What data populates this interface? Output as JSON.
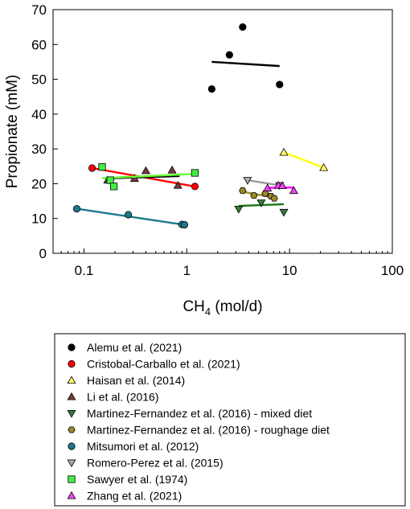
{
  "chart_data": {
    "type": "scatter",
    "title": "",
    "xlabel": {
      "base": "CH",
      "sub": "4",
      "rest": " (mol/d)"
    },
    "ylabel": "Propionate (mM)",
    "xscale": "log",
    "xlim": [
      0.05,
      100
    ],
    "ylim": [
      0,
      70
    ],
    "x_ticks": [
      {
        "value": 0.1,
        "label": "0.1"
      },
      {
        "value": 1,
        "label": "1"
      },
      {
        "value": 10,
        "label": "10"
      },
      {
        "value": 100,
        "label": "100"
      }
    ],
    "y_ticks": [
      {
        "value": 0,
        "label": "0"
      },
      {
        "value": 10,
        "label": "10"
      },
      {
        "value": 20,
        "label": "20"
      },
      {
        "value": 30,
        "label": "30"
      },
      {
        "value": 40,
        "label": "40"
      },
      {
        "value": 50,
        "label": "50"
      },
      {
        "value": 60,
        "label": "60"
      },
      {
        "value": 70,
        "label": "70"
      }
    ],
    "grid": false,
    "legend_position": "below",
    "series": [
      {
        "name": "Alemu et al. (2021)",
        "marker": "circle",
        "fill": "#000000",
        "line_color": "#000000",
        "points": [
          [
            1.75,
            47.2
          ],
          [
            2.6,
            57.0
          ],
          [
            3.5,
            65.0
          ],
          [
            8.0,
            48.5
          ]
        ],
        "fit": [
          [
            1.75,
            55.0
          ],
          [
            8.0,
            53.8
          ]
        ]
      },
      {
        "name": "Cristobal-Carballo et al. (2021)",
        "marker": "circle",
        "fill": "#ff0000",
        "line_color": "#ff0000",
        "points": [
          [
            0.12,
            24.5
          ],
          [
            1.2,
            19.2
          ]
        ],
        "fit": [
          [
            0.12,
            24.5
          ],
          [
            1.2,
            19.2
          ]
        ]
      },
      {
        "name": "Haisan et al. (2014)",
        "marker": "triangle-up",
        "fill": "#ffff66",
        "line_color": "#ffff00",
        "points": [
          [
            8.8,
            29.0
          ],
          [
            21.5,
            24.6
          ]
        ],
        "fit": [
          [
            8.8,
            29.0
          ],
          [
            21.5,
            24.6
          ]
        ]
      },
      {
        "name": "Li et al. (2016)",
        "marker": "triangle-up",
        "fill": "#7a3a3a",
        "line_color": "#000000",
        "points": [
          [
            0.17,
            21.0
          ],
          [
            0.31,
            21.5
          ],
          [
            0.4,
            23.7
          ],
          [
            0.72,
            23.9
          ],
          [
            0.82,
            19.5
          ]
        ],
        "fit": [
          [
            0.16,
            21.5
          ],
          [
            0.85,
            22.2
          ]
        ]
      },
      {
        "name": "Martinez-Fernandez et al. (2016) - mixed diet",
        "marker": "triangle-down",
        "fill": "#3a7a3a",
        "line_color": "#1a7a1a",
        "points": [
          [
            3.2,
            12.7
          ],
          [
            5.3,
            14.5
          ],
          [
            8.8,
            11.8
          ]
        ],
        "fit": [
          [
            3.2,
            13.6
          ],
          [
            8.8,
            14.1
          ]
        ]
      },
      {
        "name": "Martinez-Fernandez et al. (2016) - roughage diet",
        "marker": "hexagon",
        "fill": "#9a8a2a",
        "line_color": "#9a8a2a",
        "points": [
          [
            3.5,
            18.0
          ],
          [
            4.5,
            16.6
          ],
          [
            5.8,
            17.2
          ],
          [
            6.6,
            16.4
          ],
          [
            7.1,
            15.8
          ]
        ],
        "fit": [
          [
            3.5,
            17.7
          ],
          [
            7.1,
            16.0
          ]
        ]
      },
      {
        "name": "Mitsumori et al. (2012)",
        "marker": "circle",
        "fill": "#1a7a8a",
        "line_color": "#1a7a8a",
        "points": [
          [
            0.085,
            12.8
          ],
          [
            0.27,
            11.1
          ],
          [
            0.9,
            8.3
          ],
          [
            0.95,
            8.2
          ]
        ],
        "fit": [
          [
            0.085,
            12.8
          ],
          [
            0.95,
            8.2
          ]
        ]
      },
      {
        "name": "Romero-Perez et al. (2015)",
        "marker": "triangle-down",
        "fill": "#aaaaaa",
        "line_color": "#999999",
        "points": [
          [
            3.9,
            21.0
          ],
          [
            8.0,
            19.5
          ]
        ],
        "fit": [
          [
            3.9,
            21.0
          ],
          [
            8.0,
            19.5
          ]
        ]
      },
      {
        "name": "Sawyer et al. (1974)",
        "marker": "square",
        "fill": "#44ee44",
        "line_color": "#66ff33",
        "points": [
          [
            0.15,
            24.8
          ],
          [
            0.18,
            21.0
          ],
          [
            0.195,
            19.2
          ],
          [
            1.2,
            23.1
          ]
        ],
        "fit": [
          [
            0.15,
            21.6
          ],
          [
            1.2,
            22.8
          ]
        ]
      },
      {
        "name": "Zhang et al. (2021)",
        "marker": "triangle-up",
        "fill": "#ee44ee",
        "line_color": "#ff00ff",
        "points": [
          [
            6.1,
            18.7
          ],
          [
            7.8,
            19.5
          ],
          [
            8.5,
            19.4
          ],
          [
            11.0,
            18.0
          ]
        ],
        "fit": [
          [
            6.1,
            18.8
          ],
          [
            11.0,
            18.9
          ]
        ]
      }
    ]
  }
}
